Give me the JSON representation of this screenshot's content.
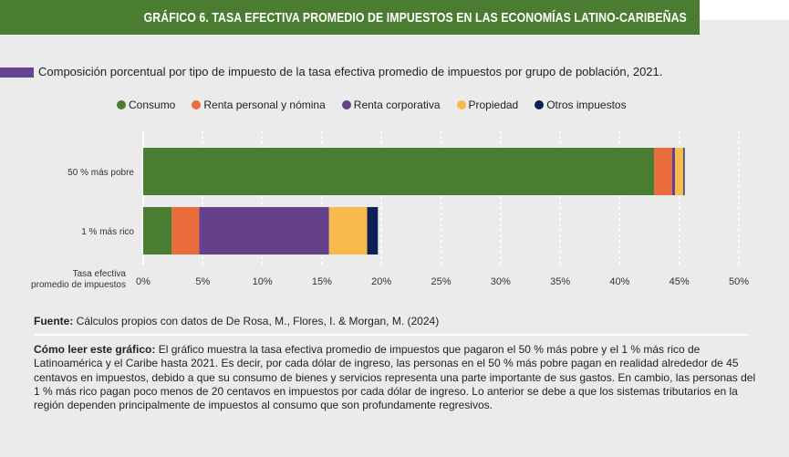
{
  "header": {
    "title": "GRÁFICO 6. TASA EFECTIVA PROMEDIO DE IMPUESTOS EN LAS ECONOMÍAS LATINO-CARIBEÑAS"
  },
  "colors": {
    "header_bg": "#4a7d31",
    "subtitle_marker": "#65458f"
  },
  "chart_data": {
    "type": "bar",
    "orientation": "horizontal",
    "stacked": true,
    "title": "Composición porcentual por tipo de impuesto de la tasa efectiva promedio de impuestos por grupo de población, 2021.",
    "xlabel": "Tasa efectiva promedio de impuestos",
    "ylabel": "",
    "categories": [
      "50 % más pobre",
      "1 % más rico"
    ],
    "series": [
      {
        "name": "Consumo",
        "color": "#4a7d31",
        "values": [
          42.9,
          2.4
        ]
      },
      {
        "name": "Renta personal y nómina",
        "color": "#eb6d3c",
        "values": [
          1.5,
          2.3
        ]
      },
      {
        "name": "Renta corporativa",
        "color": "#65418b",
        "values": [
          0.25,
          10.9
        ]
      },
      {
        "name": "Propiedad",
        "color": "#f8bb4b",
        "values": [
          0.7,
          3.2
        ]
      },
      {
        "name": "Otros impuestos",
        "color": "#0d2157",
        "values": [
          0.1,
          0.9
        ]
      }
    ],
    "xlim": [
      0,
      50
    ],
    "xticks": [
      0,
      5,
      10,
      15,
      20,
      25,
      30,
      35,
      40,
      45,
      50
    ],
    "xtick_labels": [
      "0%",
      "5%",
      "10%",
      "15%",
      "20%",
      "25%",
      "30%",
      "35%",
      "40%",
      "45%",
      "50%"
    ],
    "xlabel_lines": [
      "Tasa efectiva",
      "promedio de impuestos"
    ],
    "grid": true,
    "legend_position": "top"
  },
  "footer": {
    "source_label": "Fuente:",
    "source_text": " Cálculos propios con datos de De Rosa, M., Flores, I. & Morgan, M. (2024)",
    "howto_label": "Cómo leer este gráfico:",
    "howto_text": " El gráfico muestra la tasa efectiva promedio de impuestos que pagaron el 50 % más pobre y el 1 % más rico de Latinoamérica y el Caribe hasta 2021. Es decir, por cada dólar de ingreso, las personas en el 50 % más pobre pagan en realidad alrededor de 45 centavos en impuestos, debido a que su consumo de bienes y servicios representa una parte importante de sus gastos. En cambio, las personas del 1 % más rico pagan poco menos de 20 centavos en impuestos por cada dólar de ingreso. Lo anterior se debe a que los sistemas tributarios en la región dependen principalmente de impuestos al consumo que son profundamente regresivos."
  }
}
